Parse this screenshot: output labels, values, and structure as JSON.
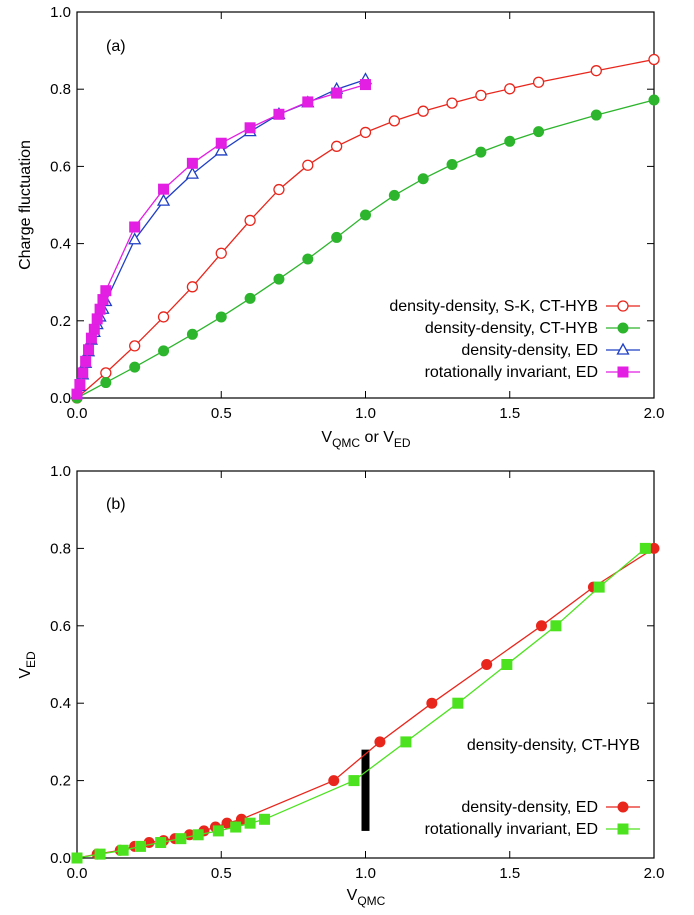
{
  "chart_data": [
    {
      "type": "line",
      "panel_label": "(a)",
      "xlabel": {
        "main": "V",
        "sub": "QMC",
        "mid": " or V",
        "sub2": "ED"
      },
      "ylabel": "Charge fluctuation",
      "xlim": [
        0,
        2
      ],
      "ylim": [
        0,
        1
      ],
      "xticks": [
        "0.0",
        "0.5",
        "1.0",
        "1.5",
        "2.0"
      ],
      "yticks": [
        "0.0",
        "0.2",
        "0.4",
        "0.6",
        "0.8",
        "1.0"
      ],
      "grid": false,
      "legend_position": "bottom-right",
      "series": [
        {
          "name": "density-density, S-K, CT-HYB",
          "color": "#e8261c",
          "marker": "open-circle",
          "points": [
            [
              0,
              0
            ],
            [
              0.1,
              0.065
            ],
            [
              0.2,
              0.135
            ],
            [
              0.3,
              0.21
            ],
            [
              0.4,
              0.288
            ],
            [
              0.5,
              0.375
            ],
            [
              0.6,
              0.46
            ],
            [
              0.7,
              0.54
            ],
            [
              0.8,
              0.603
            ],
            [
              0.9,
              0.652
            ],
            [
              1.0,
              0.688
            ],
            [
              1.1,
              0.718
            ],
            [
              1.2,
              0.743
            ],
            [
              1.3,
              0.764
            ],
            [
              1.4,
              0.784
            ],
            [
              1.5,
              0.801
            ],
            [
              1.6,
              0.818
            ],
            [
              1.8,
              0.848
            ],
            [
              2.0,
              0.877
            ]
          ]
        },
        {
          "name": "density-density, CT-HYB",
          "color": "#2db52d",
          "marker": "filled-circle",
          "points": [
            [
              0,
              0
            ],
            [
              0.1,
              0.04
            ],
            [
              0.2,
              0.08
            ],
            [
              0.3,
              0.122
            ],
            [
              0.4,
              0.165
            ],
            [
              0.5,
              0.21
            ],
            [
              0.6,
              0.258
            ],
            [
              0.7,
              0.308
            ],
            [
              0.8,
              0.36
            ],
            [
              0.9,
              0.416
            ],
            [
              1.0,
              0.474
            ],
            [
              1.1,
              0.525
            ],
            [
              1.2,
              0.568
            ],
            [
              1.3,
              0.605
            ],
            [
              1.4,
              0.637
            ],
            [
              1.5,
              0.665
            ],
            [
              1.6,
              0.69
            ],
            [
              1.8,
              0.733
            ],
            [
              2.0,
              0.772
            ]
          ]
        },
        {
          "name": "density-density, ED",
          "color": "#1f3fc4",
          "marker": "open-triangle",
          "points": [
            [
              0,
              0.01
            ],
            [
              0.01,
              0.03
            ],
            [
              0.02,
              0.06
            ],
            [
              0.03,
              0.09
            ],
            [
              0.04,
              0.12
            ],
            [
              0.05,
              0.15
            ],
            [
              0.06,
              0.17
            ],
            [
              0.07,
              0.19
            ],
            [
              0.08,
              0.21
            ],
            [
              0.09,
              0.23
            ],
            [
              0.1,
              0.25
            ],
            [
              0.2,
              0.41
            ],
            [
              0.3,
              0.51
            ],
            [
              0.4,
              0.58
            ],
            [
              0.5,
              0.64
            ],
            [
              0.6,
              0.69
            ],
            [
              0.7,
              0.735
            ],
            [
              0.8,
              0.765
            ],
            [
              0.9,
              0.8
            ],
            [
              1.0,
              0.825
            ]
          ]
        },
        {
          "name": "rotationally invariant, ED",
          "color": "#e21fe2",
          "marker": "filled-square",
          "points": [
            [
              0,
              0.01
            ],
            [
              0.01,
              0.035
            ],
            [
              0.02,
              0.065
            ],
            [
              0.03,
              0.095
            ],
            [
              0.04,
              0.125
            ],
            [
              0.05,
              0.155
            ],
            [
              0.06,
              0.178
            ],
            [
              0.07,
              0.205
            ],
            [
              0.08,
              0.23
            ],
            [
              0.09,
              0.255
            ],
            [
              0.1,
              0.278
            ],
            [
              0.2,
              0.443
            ],
            [
              0.3,
              0.541
            ],
            [
              0.4,
              0.608
            ],
            [
              0.5,
              0.66
            ],
            [
              0.6,
              0.7
            ],
            [
              0.7,
              0.735
            ],
            [
              0.8,
              0.767
            ],
            [
              0.9,
              0.79
            ],
            [
              1.0,
              0.812
            ]
          ]
        }
      ]
    },
    {
      "type": "line",
      "panel_label": "(b)",
      "xlabel": {
        "main": "V",
        "sub": "QMC",
        "mid": "",
        "sub2": ""
      },
      "ylabel": {
        "main": "V",
        "sub": "ED"
      },
      "xlim": [
        0,
        2
      ],
      "ylim": [
        0,
        1
      ],
      "xticks": [
        "0.0",
        "0.5",
        "1.0",
        "1.5",
        "2.0"
      ],
      "yticks": [
        "0.0",
        "0.2",
        "0.4",
        "0.6",
        "0.8",
        "1.0"
      ],
      "grid": false,
      "legend_position": "bottom-right",
      "legend_header": "density-density, CT-HYB",
      "marker_bar": {
        "x": 1.0,
        "y_range": [
          0.07,
          0.28
        ],
        "color": "#000000"
      },
      "series": [
        {
          "name": "density-density, ED",
          "color": "#e8261c",
          "marker": "filled-circle",
          "points": [
            [
              0,
              0
            ],
            [
              0.07,
              0.01
            ],
            [
              0.15,
              0.02
            ],
            [
              0.2,
              0.03
            ],
            [
              0.25,
              0.04
            ],
            [
              0.3,
              0.045
            ],
            [
              0.34,
              0.05
            ],
            [
              0.39,
              0.06
            ],
            [
              0.44,
              0.07
            ],
            [
              0.48,
              0.08
            ],
            [
              0.52,
              0.09
            ],
            [
              0.57,
              0.1
            ],
            [
              0.89,
              0.2
            ],
            [
              1.05,
              0.3
            ],
            [
              1.23,
              0.4
            ],
            [
              1.42,
              0.5
            ],
            [
              1.61,
              0.6
            ],
            [
              1.79,
              0.7
            ],
            [
              2.0,
              0.8
            ]
          ]
        },
        {
          "name": "rotationally invariant, ED",
          "color": "#4de21f",
          "marker": "filled-square",
          "points": [
            [
              0,
              0
            ],
            [
              0.08,
              0.01
            ],
            [
              0.16,
              0.02
            ],
            [
              0.22,
              0.03
            ],
            [
              0.29,
              0.04
            ],
            [
              0.36,
              0.05
            ],
            [
              0.42,
              0.06
            ],
            [
              0.49,
              0.07
            ],
            [
              0.55,
              0.08
            ],
            [
              0.6,
              0.09
            ],
            [
              0.65,
              0.1
            ],
            [
              0.96,
              0.2
            ],
            [
              1.14,
              0.3
            ],
            [
              1.32,
              0.4
            ],
            [
              1.49,
              0.5
            ],
            [
              1.66,
              0.6
            ],
            [
              1.81,
              0.7
            ],
            [
              1.97,
              0.8
            ]
          ]
        }
      ]
    }
  ]
}
